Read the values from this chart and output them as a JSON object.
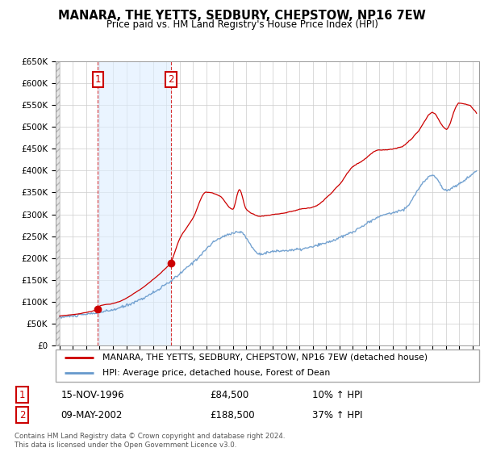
{
  "title": "MANARA, THE YETTS, SEDBURY, CHEPSTOW, NP16 7EW",
  "subtitle": "Price paid vs. HM Land Registry's House Price Index (HPI)",
  "ylim": [
    0,
    650000
  ],
  "yticks": [
    0,
    50000,
    100000,
    150000,
    200000,
    250000,
    300000,
    350000,
    400000,
    450000,
    500000,
    550000,
    600000,
    650000
  ],
  "ytick_labels": [
    "£0",
    "£50K",
    "£100K",
    "£150K",
    "£200K",
    "£250K",
    "£300K",
    "£350K",
    "£400K",
    "£450K",
    "£500K",
    "£550K",
    "£600K",
    "£650K"
  ],
  "xlim_start": 1993.7,
  "xlim_end": 2025.5,
  "bg_color": "#ffffff",
  "plot_bg_color": "#ffffff",
  "grid_color": "#cccccc",
  "shade_color": "#ddeeff",
  "red_line_color": "#cc0000",
  "blue_line_color": "#6699cc",
  "sale1_x": 1996.875,
  "sale1_y": 84500,
  "sale2_x": 2002.36,
  "sale2_y": 188500,
  "legend_line1": "MANARA, THE YETTS, SEDBURY, CHEPSTOW, NP16 7EW (detached house)",
  "legend_line2": "HPI: Average price, detached house, Forest of Dean",
  "table_row1_date": "15-NOV-1996",
  "table_row1_price": "£84,500",
  "table_row1_hpi": "10% ↑ HPI",
  "table_row2_date": "09-MAY-2002",
  "table_row2_price": "£188,500",
  "table_row2_hpi": "37% ↑ HPI",
  "footer": "Contains HM Land Registry data © Crown copyright and database right 2024.\nThis data is licensed under the Open Government Licence v3.0.",
  "hatch_end_x": 1994.0,
  "shade_start": 1996.875,
  "shade_end": 2002.36
}
